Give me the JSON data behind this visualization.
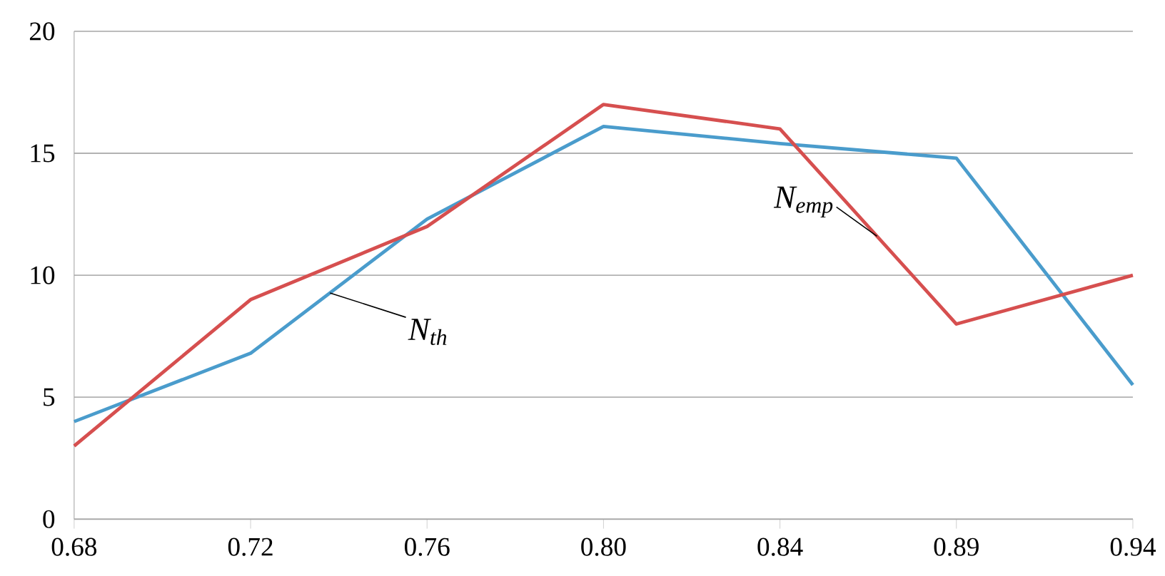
{
  "chart_data": {
    "type": "line",
    "categories": [
      "0.68",
      "0.72",
      "0.76",
      "0.80",
      "0.84",
      "0.89",
      "0.94"
    ],
    "series": [
      {
        "name": "N$_{th}$",
        "color": "#4a9ccc",
        "values": [
          4,
          6.8,
          12.3,
          16.1,
          15.4,
          14.8,
          5.5
        ]
      },
      {
        "name": "N$_{emp}$",
        "color": "#d64f4f",
        "values": [
          3,
          9,
          12,
          17,
          16,
          8,
          10
        ]
      }
    ],
    "ylim": [
      0,
      20
    ],
    "yticks": [
      0,
      5,
      10,
      15,
      20
    ],
    "grid": "y",
    "marker": "none",
    "line_style": "solid",
    "legend": false
  }
}
